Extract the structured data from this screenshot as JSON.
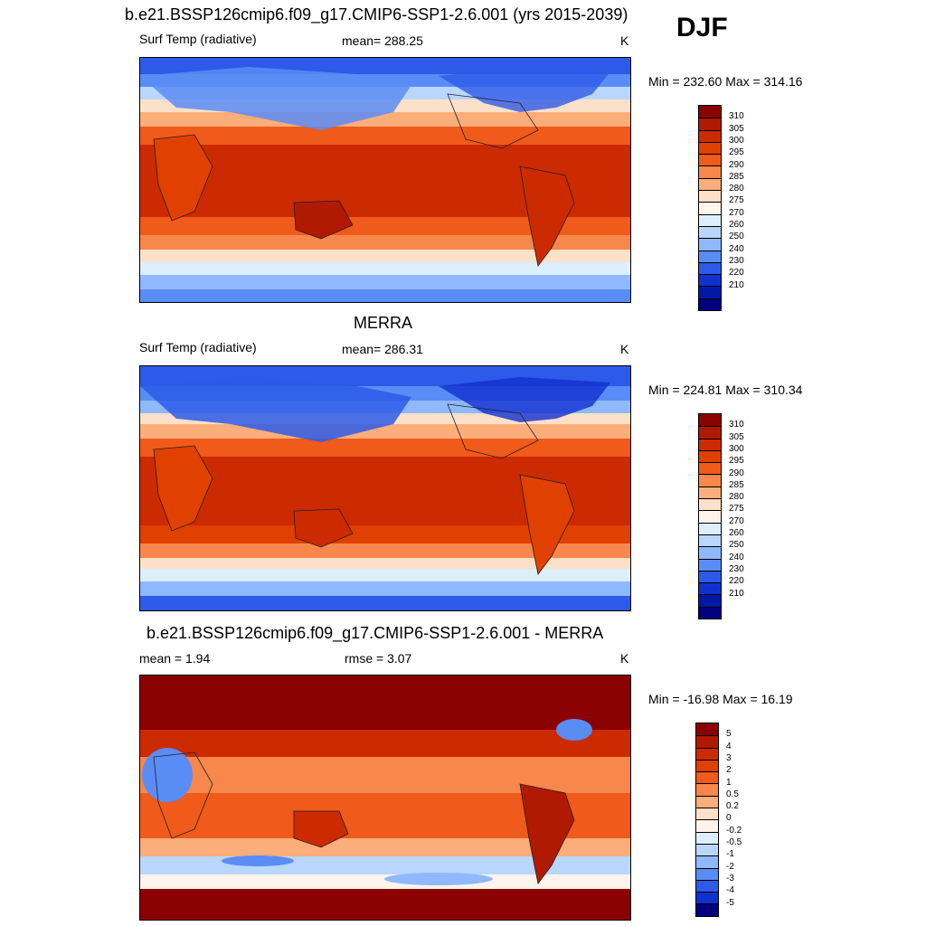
{
  "header": {
    "title": "b.e21.BSSP126cmip6.f09_g17.CMIP6-SSP1-2.6.001 (yrs 2015-2039)",
    "season": "DJF"
  },
  "panels": [
    {
      "id": "model",
      "title": "",
      "left_label": "Surf Temp (radiative)",
      "center_label": "mean= 288.25",
      "units": "K",
      "minmax": "Min = 232.60 Max = 314.16",
      "colorbar": {
        "ticks": [
          "310",
          "305",
          "300",
          "295",
          "290",
          "285",
          "280",
          "275",
          "270",
          "260",
          "250",
          "240",
          "230",
          "220",
          "210"
        ],
        "colors": [
          "#8b0000",
          "#b01a00",
          "#cc2a00",
          "#e04000",
          "#f05a1a",
          "#f7874a",
          "#fbad7a",
          "#fde0c8",
          "#fff4ec",
          "#dceeff",
          "#b9d6ff",
          "#90b8ff",
          "#5a8cf5",
          "#2d5ae8",
          "#1030d0",
          "#0018a8",
          "#000080"
        ]
      },
      "map_theme": "model"
    },
    {
      "id": "obs",
      "title": "MERRA",
      "left_label": "Surf Temp (radiative)",
      "center_label": "mean= 286.31",
      "units": "K",
      "minmax": "Min = 224.81 Max = 310.34",
      "colorbar": {
        "ticks": [
          "310",
          "305",
          "300",
          "295",
          "290",
          "285",
          "280",
          "275",
          "270",
          "260",
          "250",
          "240",
          "230",
          "220",
          "210"
        ],
        "colors": [
          "#8b0000",
          "#b01a00",
          "#cc2a00",
          "#e04000",
          "#f05a1a",
          "#f7874a",
          "#fbad7a",
          "#fde0c8",
          "#fff4ec",
          "#dceeff",
          "#b9d6ff",
          "#90b8ff",
          "#5a8cf5",
          "#2d5ae8",
          "#1030d0",
          "#0018a8",
          "#000080"
        ]
      },
      "map_theme": "obs"
    },
    {
      "id": "diff",
      "title": "b.e21.BSSP126cmip6.f09_g17.CMIP6-SSP1-2.6.001 - MERRA",
      "left_label": "mean =   1.94",
      "center_label": "rmse =   3.07",
      "units": "K",
      "minmax": "Min = -16.98 Max =  16.19",
      "colorbar": {
        "ticks": [
          "5",
          "4",
          "3",
          "2",
          "1",
          "0.5",
          "0.2",
          "0",
          "-0.2",
          "-0.5",
          "-1",
          "-2",
          "-3",
          "-4",
          "-5"
        ],
        "colors": [
          "#8b0000",
          "#b01a00",
          "#cc2a00",
          "#e04000",
          "#f05a1a",
          "#f7874a",
          "#fbad7a",
          "#fde0c8",
          "#fff4ec",
          "#dceeff",
          "#b9d6ff",
          "#90b8ff",
          "#5a8cf5",
          "#2d5ae8",
          "#1030d0",
          "#000080"
        ]
      },
      "map_theme": "diff"
    }
  ]
}
